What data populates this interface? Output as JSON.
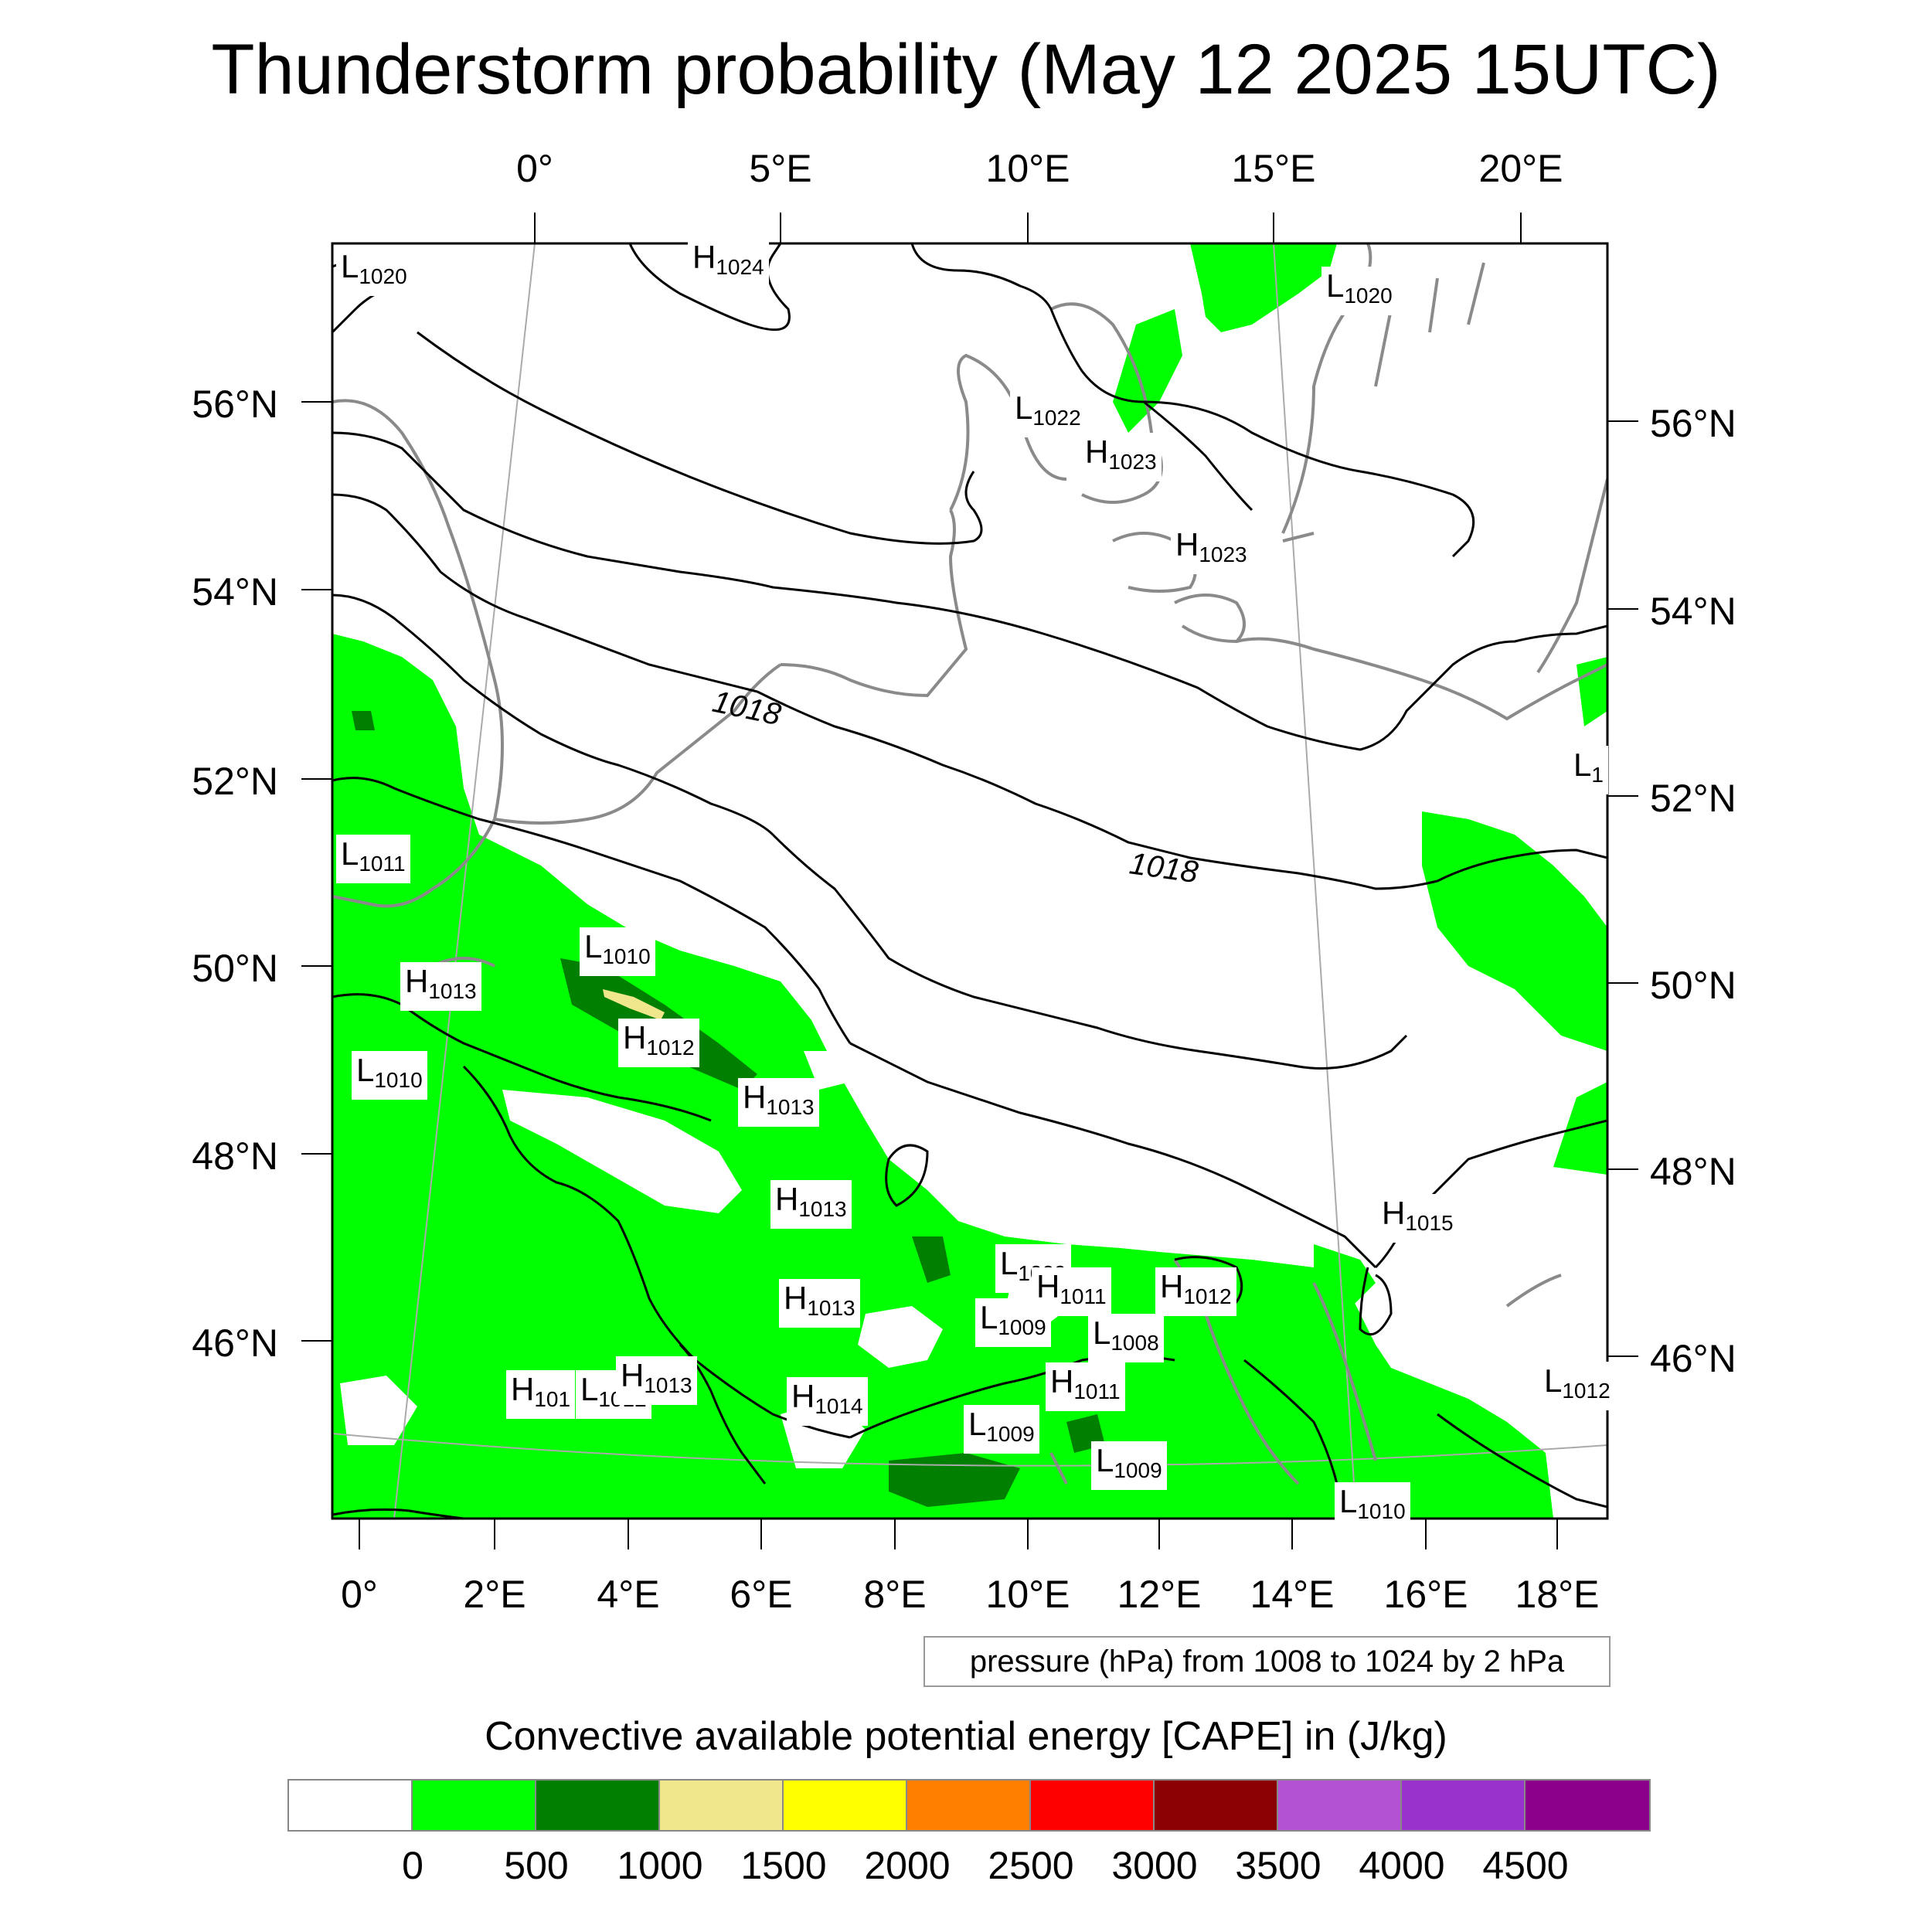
{
  "title": "Thunderstorm probability (May 12 2025 15UTC)",
  "top_lon_ticks": [
    "0°",
    "5°E",
    "10°E",
    "15°E",
    "20°E"
  ],
  "bottom_lon_ticks": [
    "0°",
    "2°E",
    "4°E",
    "6°E",
    "8°E",
    "10°E",
    "12°E",
    "14°E",
    "16°E",
    "18°E"
  ],
  "left_lat_ticks": [
    "56°N",
    "54°N",
    "52°N",
    "50°N",
    "48°N",
    "46°N"
  ],
  "right_lat_ticks": [
    "56°N",
    "54°N",
    "52°N",
    "50°N",
    "48°N",
    "46°N"
  ],
  "contour_labels": [
    "1018",
    "1018"
  ],
  "pressure_centers": [
    {
      "type": "L",
      "value": "1020"
    },
    {
      "type": "H",
      "value": "1024"
    },
    {
      "type": "L",
      "value": "1020"
    },
    {
      "type": "L",
      "value": "1022"
    },
    {
      "type": "H",
      "value": "1023"
    },
    {
      "type": "H",
      "value": "1023"
    },
    {
      "type": "L",
      "value": "1"
    },
    {
      "type": "L",
      "value": "1011"
    },
    {
      "type": "L",
      "value": "1010"
    },
    {
      "type": "H",
      "value": "1013"
    },
    {
      "type": "H",
      "value": "1012"
    },
    {
      "type": "L",
      "value": "1010"
    },
    {
      "type": "H",
      "value": "1013"
    },
    {
      "type": "H",
      "value": "1013"
    },
    {
      "type": "H",
      "value": "1015"
    },
    {
      "type": "L",
      "value": "1009"
    },
    {
      "type": "H",
      "value": "1011"
    },
    {
      "type": "H",
      "value": "1012"
    },
    {
      "type": "H",
      "value": "1013"
    },
    {
      "type": "L",
      "value": "1009"
    },
    {
      "type": "L",
      "value": "1008"
    },
    {
      "type": "H",
      "value": "101"
    },
    {
      "type": "L",
      "value": "1012"
    },
    {
      "type": "H",
      "value": "1013"
    },
    {
      "type": "H",
      "value": "1011"
    },
    {
      "type": "H",
      "value": "1014"
    },
    {
      "type": "L",
      "value": "1009"
    },
    {
      "type": "L",
      "value": "1009"
    },
    {
      "type": "L",
      "value": "1012"
    },
    {
      "type": "L",
      "value": "1010"
    }
  ],
  "contour_note": "pressure (hPa) from 1008 to 1024 by 2 hPa",
  "legend": {
    "title": "Convective available potential energy [CAPE] in (J/kg)",
    "colors": [
      "#ffffff",
      "#00ff00",
      "#007f00",
      "#f0e68c",
      "#ffff00",
      "#ff8000",
      "#ff0000",
      "#8b0000",
      "#b452d4",
      "#9932cc",
      "#8b008b"
    ],
    "labels": [
      "0",
      "500",
      "1000",
      "1500",
      "2000",
      "2500",
      "3000",
      "3500",
      "4000",
      "4500"
    ]
  },
  "cape_colors": {
    "moderate": "#00ff00",
    "high": "#007f00",
    "very_high": "#f0e68c"
  }
}
